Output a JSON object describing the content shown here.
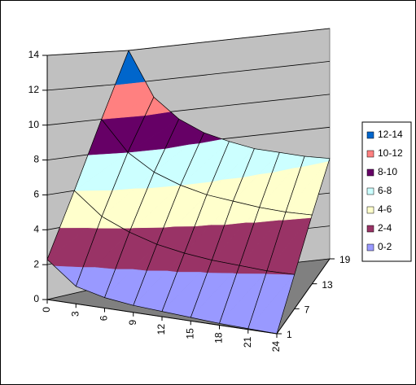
{
  "chart_data": {
    "type": "surface",
    "x": [
      0,
      3,
      6,
      9,
      12,
      15,
      18,
      21,
      24
    ],
    "xlim": [
      0,
      24
    ],
    "series": [
      {
        "name": "1",
        "values": [
          2.3,
          1,
          0.6,
          0.4,
          0.3,
          0.2,
          0.1,
          0.05,
          0
        ]
      },
      {
        "name": "7",
        "values": [
          6,
          4.6,
          3.8,
          3.2,
          2.8,
          2.5,
          2.3,
          2.1,
          2
        ]
      },
      {
        "name": "13",
        "values": [
          10,
          8,
          6.8,
          6,
          5.4,
          5,
          4.6,
          4.3,
          4.1
        ]
      },
      {
        "name": "19",
        "values": [
          14,
          11,
          9.5,
          8.5,
          7.8,
          7.2,
          6.8,
          6.4,
          6.1
        ]
      }
    ],
    "zlim": [
      0,
      14
    ],
    "zticks": [
      0,
      2,
      4,
      6,
      8,
      10,
      12,
      14
    ],
    "bands": [
      {
        "name": "0-2",
        "color": "#9999ff"
      },
      {
        "name": "2-4",
        "color": "#993366"
      },
      {
        "name": "4-6",
        "color": "#ffffcc"
      },
      {
        "name": "6-8",
        "color": "#ccffff"
      },
      {
        "name": "8-10",
        "color": "#660066"
      },
      {
        "name": "10-12",
        "color": "#ff8080"
      },
      {
        "name": "12-14",
        "color": "#0066cc"
      }
    ],
    "grid": true
  }
}
